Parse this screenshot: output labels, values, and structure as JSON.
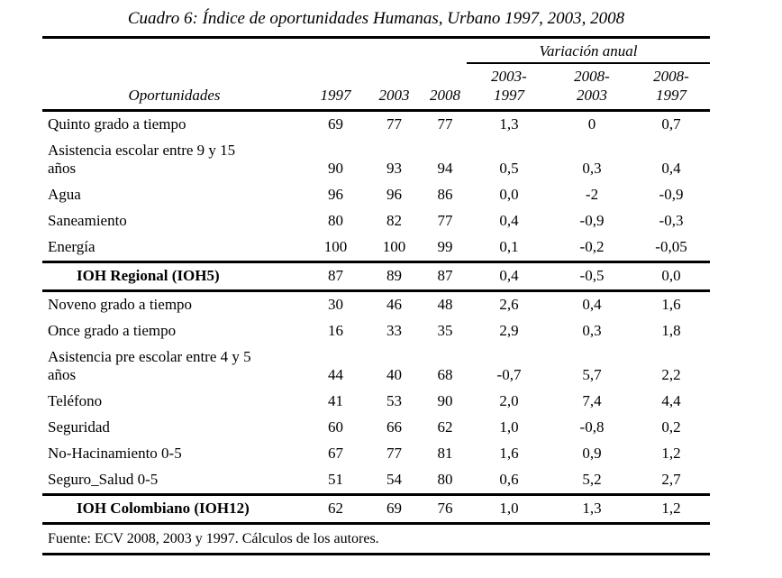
{
  "title": "Cuadro 6: Índice de oportunidades Humanas, Urbano 1997, 2003, 2008",
  "table": {
    "variation_header": "Variación anual",
    "col_oportunidades": "Oportunidades",
    "year_cols": [
      "1997",
      "2003",
      "2008"
    ],
    "variation_cols": [
      "2003-\n1997",
      "2008-\n2003",
      "2008-\n1997"
    ],
    "rows": [
      {
        "label": "Quinto grado a tiempo",
        "values": [
          "69",
          "77",
          "77",
          "1,3",
          "0",
          "0,7"
        ],
        "bold": false,
        "rule_below": false
      },
      {
        "label": "Asistencia escolar entre 9 y 15\naños",
        "values": [
          "90",
          "93",
          "94",
          "0,5",
          "0,3",
          "0,4"
        ],
        "bold": false,
        "rule_below": false
      },
      {
        "label": "Agua",
        "values": [
          "96",
          "96",
          "86",
          "0,0",
          "-2",
          "-0,9"
        ],
        "bold": false,
        "rule_below": false
      },
      {
        "label": "Saneamiento",
        "values": [
          "80",
          "82",
          "77",
          "0,4",
          "-0,9",
          "-0,3"
        ],
        "bold": false,
        "rule_below": false
      },
      {
        "label": "Energía",
        "values": [
          "100",
          "100",
          "99",
          "0,1",
          "-0,2",
          "-0,05"
        ],
        "bold": false,
        "rule_below": true
      },
      {
        "label": "IOH Regional (IOH5)",
        "values": [
          "87",
          "89",
          "87",
          "0,4",
          "-0,5",
          "0,0"
        ],
        "bold": true,
        "rule_below": true
      },
      {
        "label": "Noveno grado a tiempo",
        "values": [
          "30",
          "46",
          "48",
          "2,6",
          "0,4",
          "1,6"
        ],
        "bold": false,
        "rule_below": false
      },
      {
        "label": "Once grado a tiempo",
        "values": [
          "16",
          "33",
          "35",
          "2,9",
          "0,3",
          "1,8"
        ],
        "bold": false,
        "rule_below": false
      },
      {
        "label": "Asistencia pre escolar entre 4 y 5\naños",
        "values": [
          "44",
          "40",
          "68",
          "-0,7",
          "5,7",
          "2,2"
        ],
        "bold": false,
        "rule_below": false
      },
      {
        "label": "Teléfono",
        "values": [
          "41",
          "53",
          "90",
          "2,0",
          "7,4",
          "4,4"
        ],
        "bold": false,
        "rule_below": false
      },
      {
        "label": "Seguridad",
        "values": [
          "60",
          "66",
          "62",
          "1,0",
          "-0,8",
          "0,2"
        ],
        "bold": false,
        "rule_below": false
      },
      {
        "label": "No-Hacinamiento 0-5",
        "values": [
          "67",
          "77",
          "81",
          "1,6",
          "0,9",
          "1,2"
        ],
        "bold": false,
        "rule_below": false
      },
      {
        "label": "Seguro_Salud 0-5",
        "values": [
          "51",
          "54",
          "80",
          "0,6",
          "5,2",
          "2,7"
        ],
        "bold": false,
        "rule_below": true
      },
      {
        "label": "IOH Colombiano (IOH12)",
        "values": [
          "62",
          "69",
          "76",
          "1,0",
          "1,3",
          "1,2"
        ],
        "bold": true,
        "rule_below": true
      }
    ],
    "source_note": "Fuente: ECV 2008, 2003 y 1997. Cálculos de los autores."
  }
}
